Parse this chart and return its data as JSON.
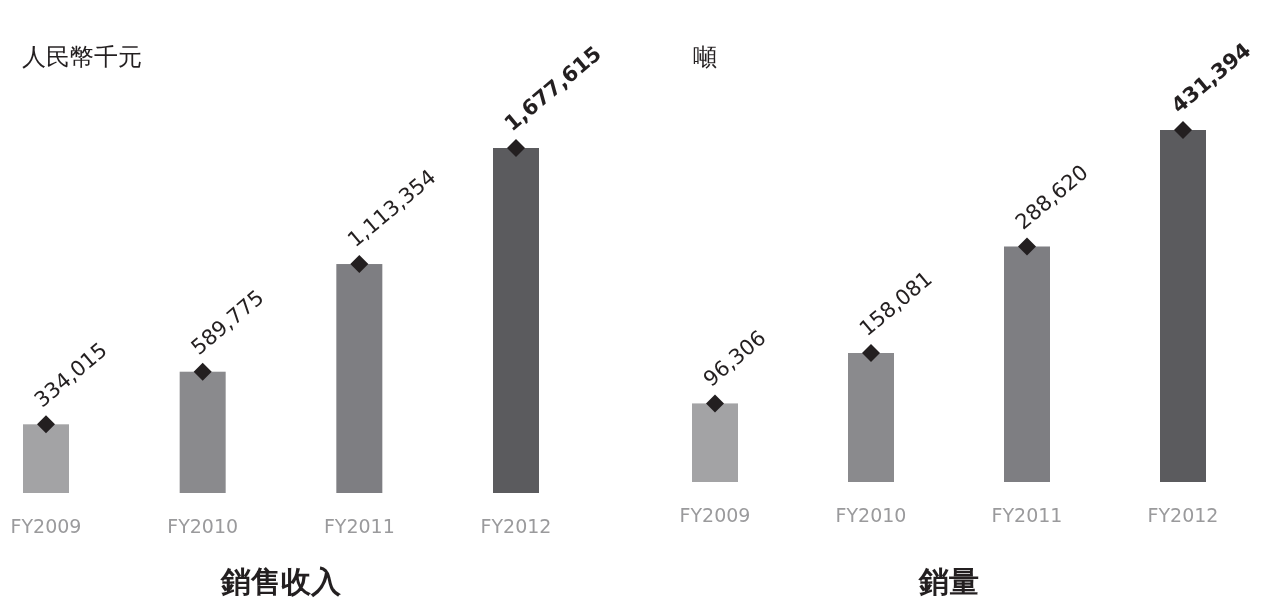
{
  "chart_data": [
    {
      "type": "bar",
      "title": "銷售收入",
      "ylabel": "人民幣千元",
      "categories": [
        "FY2009",
        "FY2010",
        "FY2011",
        "FY2012"
      ],
      "series": [
        {
          "type": "bar",
          "colors": [
            "#a3a3a5",
            "#8a8a8d",
            "#7e7e82",
            "#5b5b5e"
          ],
          "values": [
            334015,
            589775,
            1113354,
            1677615
          ],
          "value_labels": [
            "334,015",
            "589,775",
            "1,113,354",
            "1,677,615"
          ]
        },
        {
          "type": "scatter",
          "color": "#231f20",
          "marker": "diamond",
          "values": [
            334015,
            589775,
            1113354,
            1677615
          ]
        }
      ]
    },
    {
      "type": "bar",
      "title": "銷量",
      "ylabel": "噸",
      "categories": [
        "FY2009",
        "FY2010",
        "FY2011",
        "FY2012"
      ],
      "series": [
        {
          "type": "bar",
          "colors": [
            "#a3a3a5",
            "#8a8a8d",
            "#7e7e82",
            "#5b5b5e"
          ],
          "values": [
            96306,
            158081,
            288620,
            431394
          ],
          "value_labels": [
            "96,306",
            "158,081",
            "288,620",
            "431,394"
          ]
        },
        {
          "type": "scatter",
          "color": "#231f20",
          "marker": "diamond",
          "values": [
            96306,
            158081,
            288620,
            431394
          ]
        }
      ]
    }
  ]
}
